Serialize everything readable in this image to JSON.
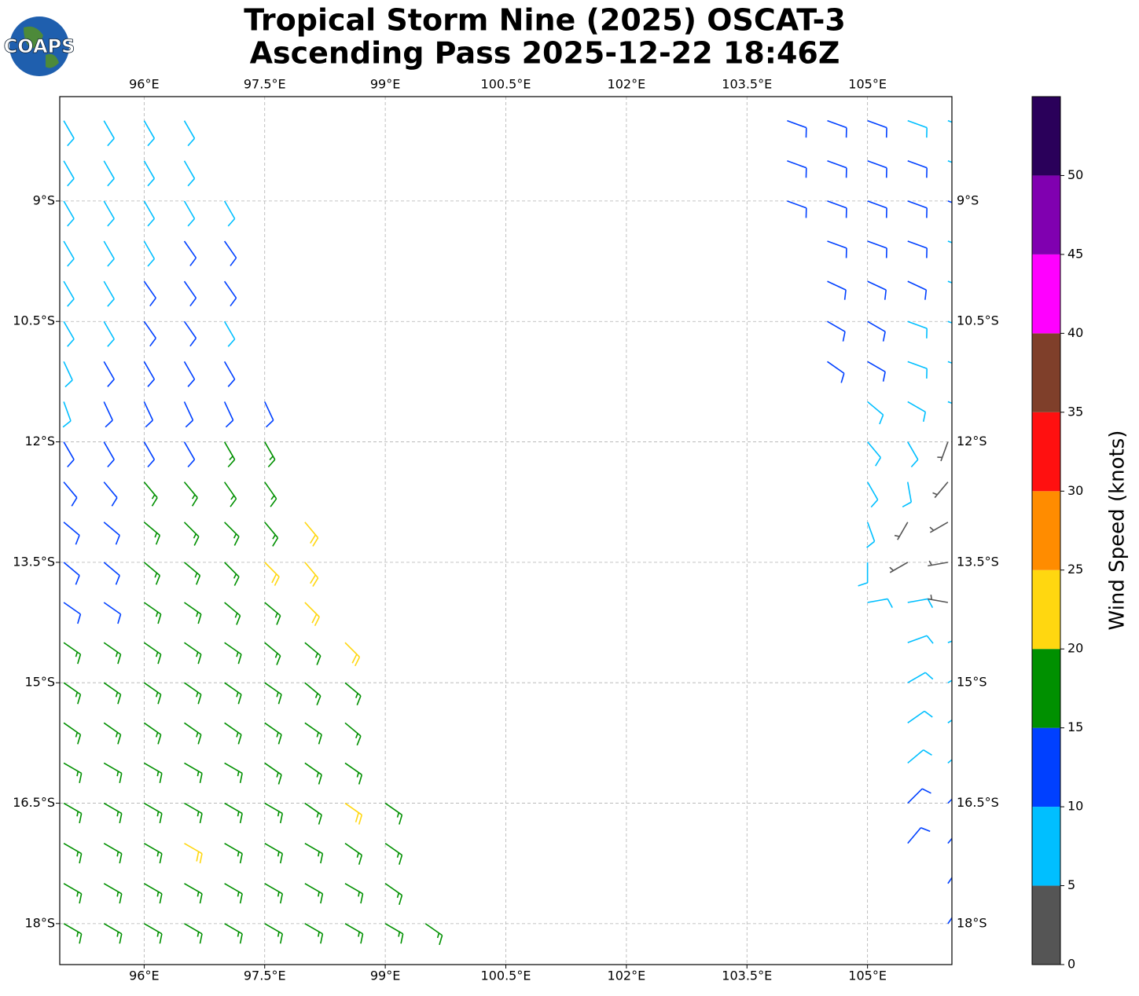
{
  "logo": "COAPS",
  "chart_data": {
    "type": "barbs",
    "title": "Tropical Storm Nine (2025) OSCAT-3",
    "subtitle": "Ascending Pass 2025-12-22 18:46Z",
    "xlim": [
      94.95,
      106.05
    ],
    "ylim": [
      -18.51,
      -7.7
    ],
    "grid": true,
    "xticks": [
      {
        "value": 96,
        "label": "96°E"
      },
      {
        "value": 97.5,
        "label": "97.5°E"
      },
      {
        "value": 99,
        "label": "99°E"
      },
      {
        "value": 100.5,
        "label": "100.5°E"
      },
      {
        "value": 102,
        "label": "102°E"
      },
      {
        "value": 103.5,
        "label": "103.5°E"
      },
      {
        "value": 105,
        "label": "105°E"
      }
    ],
    "yticks": [
      {
        "value": -9,
        "label": "9°S"
      },
      {
        "value": -10.5,
        "label": "10.5°S"
      },
      {
        "value": -12,
        "label": "12°S"
      },
      {
        "value": -13.5,
        "label": "13.5°S"
      },
      {
        "value": -15,
        "label": "15°S"
      },
      {
        "value": -16.5,
        "label": "16.5°S"
      },
      {
        "value": -18,
        "label": "18°S"
      }
    ],
    "colorbar": {
      "label": "Wind Speed (knots)",
      "clim": [
        0,
        55
      ],
      "ticks": [
        0,
        5,
        10,
        15,
        20,
        25,
        30,
        35,
        40,
        45,
        50
      ],
      "colors": [
        "#555555",
        "#00bfff",
        "#0040ff",
        "#009000",
        "#ffd710",
        "#ff8c00",
        "#ff1010",
        "#7f3f2a",
        "#ff00ff",
        "#8000b0",
        "#2a005a"
      ]
    },
    "barbs": [
      [
        95.0,
        -8,
        8,
        150
      ],
      [
        95.5,
        -8,
        8,
        150
      ],
      [
        96.0,
        -8,
        8,
        150
      ],
      [
        96.5,
        -8,
        8,
        150
      ],
      [
        95.0,
        -8.5,
        8,
        150
      ],
      [
        95.5,
        -8.5,
        8,
        150
      ],
      [
        96.0,
        -8.5,
        8,
        150
      ],
      [
        96.5,
        -8.5,
        8,
        150
      ],
      [
        95.0,
        -9,
        8,
        150
      ],
      [
        95.5,
        -9,
        8,
        150
      ],
      [
        96.0,
        -9,
        8,
        150
      ],
      [
        96.5,
        -9,
        8,
        150
      ],
      [
        97.0,
        -9,
        8,
        150
      ],
      [
        95.0,
        -9.5,
        8,
        150
      ],
      [
        95.5,
        -9.5,
        8,
        150
      ],
      [
        96.0,
        -9.5,
        8,
        150
      ],
      [
        96.5,
        -9.5,
        12,
        145
      ],
      [
        97.0,
        -9.5,
        12,
        145
      ],
      [
        95.0,
        -10,
        8,
        150
      ],
      [
        95.5,
        -10,
        8,
        150
      ],
      [
        96.0,
        -10,
        12,
        145
      ],
      [
        96.5,
        -10,
        12,
        145
      ],
      [
        97.0,
        -10,
        12,
        145
      ],
      [
        95.0,
        -10.5,
        8,
        150
      ],
      [
        95.5,
        -10.5,
        8,
        150
      ],
      [
        96.0,
        -10.5,
        12,
        145
      ],
      [
        96.5,
        -10.5,
        12,
        145
      ],
      [
        97.0,
        -10.5,
        8,
        150
      ],
      [
        95.0,
        -11,
        8,
        155
      ],
      [
        95.5,
        -11,
        12,
        150
      ],
      [
        96.0,
        -11,
        12,
        150
      ],
      [
        96.5,
        -11,
        12,
        150
      ],
      [
        97.0,
        -11,
        12,
        150
      ],
      [
        95.0,
        -11.5,
        8,
        160
      ],
      [
        95.5,
        -11.5,
        12,
        155
      ],
      [
        96.0,
        -11.5,
        12,
        155
      ],
      [
        96.5,
        -11.5,
        12,
        155
      ],
      [
        97.0,
        -11.5,
        12,
        155
      ],
      [
        97.5,
        -11.5,
        12,
        155
      ],
      [
        95.0,
        -12,
        12,
        150
      ],
      [
        95.5,
        -12,
        12,
        150
      ],
      [
        96.0,
        -12,
        12,
        150
      ],
      [
        96.5,
        -12,
        12,
        150
      ],
      [
        97.0,
        -12,
        17,
        150
      ],
      [
        97.5,
        -12,
        17,
        150
      ],
      [
        95.0,
        -12.5,
        12,
        140
      ],
      [
        95.5,
        -12.5,
        12,
        140
      ],
      [
        96.0,
        -12.5,
        17,
        140
      ],
      [
        96.5,
        -12.5,
        17,
        140
      ],
      [
        97.0,
        -12.5,
        17,
        145
      ],
      [
        97.5,
        -12.5,
        17,
        145
      ],
      [
        95.0,
        -13,
        12,
        130
      ],
      [
        95.5,
        -13,
        12,
        130
      ],
      [
        96.0,
        -13,
        17,
        130
      ],
      [
        96.5,
        -13,
        17,
        135
      ],
      [
        97.0,
        -13,
        17,
        135
      ],
      [
        97.5,
        -13,
        17,
        140
      ],
      [
        98.0,
        -13,
        22,
        140
      ],
      [
        95.0,
        -13.5,
        12,
        130
      ],
      [
        95.5,
        -13.5,
        12,
        130
      ],
      [
        96.0,
        -13.5,
        17,
        130
      ],
      [
        96.5,
        -13.5,
        17,
        130
      ],
      [
        97.0,
        -13.5,
        17,
        135
      ],
      [
        97.5,
        -13.5,
        22,
        135
      ],
      [
        98.0,
        -13.5,
        22,
        140
      ],
      [
        95.0,
        -14,
        12,
        125
      ],
      [
        95.5,
        -14,
        12,
        125
      ],
      [
        96.0,
        -14,
        17,
        125
      ],
      [
        96.5,
        -14,
        17,
        125
      ],
      [
        97.0,
        -14,
        17,
        130
      ],
      [
        97.5,
        -14,
        17,
        130
      ],
      [
        98.0,
        -14,
        22,
        135
      ],
      [
        95.0,
        -14.5,
        17,
        125
      ],
      [
        95.5,
        -14.5,
        17,
        125
      ],
      [
        96.0,
        -14.5,
        17,
        125
      ],
      [
        96.5,
        -14.5,
        17,
        125
      ],
      [
        97.0,
        -14.5,
        17,
        125
      ],
      [
        97.5,
        -14.5,
        17,
        130
      ],
      [
        98.0,
        -14.5,
        17,
        130
      ],
      [
        98.5,
        -14.5,
        22,
        135
      ],
      [
        95.0,
        -15,
        17,
        125
      ],
      [
        95.5,
        -15,
        17,
        125
      ],
      [
        96.0,
        -15,
        17,
        125
      ],
      [
        96.5,
        -15,
        17,
        125
      ],
      [
        97.0,
        -15,
        17,
        125
      ],
      [
        97.5,
        -15,
        17,
        125
      ],
      [
        98.0,
        -15,
        17,
        130
      ],
      [
        98.5,
        -15,
        17,
        130
      ],
      [
        95.0,
        -15.5,
        17,
        125
      ],
      [
        95.5,
        -15.5,
        17,
        125
      ],
      [
        96.0,
        -15.5,
        17,
        125
      ],
      [
        96.5,
        -15.5,
        17,
        125
      ],
      [
        97.0,
        -15.5,
        17,
        125
      ],
      [
        97.5,
        -15.5,
        17,
        125
      ],
      [
        98.0,
        -15.5,
        17,
        125
      ],
      [
        98.5,
        -15.5,
        17,
        130
      ],
      [
        95.0,
        -16,
        17,
        120
      ],
      [
        95.5,
        -16,
        17,
        120
      ],
      [
        96.0,
        -16,
        17,
        120
      ],
      [
        96.5,
        -16,
        17,
        120
      ],
      [
        97.0,
        -16,
        17,
        120
      ],
      [
        97.5,
        -16,
        17,
        125
      ],
      [
        98.0,
        -16,
        17,
        125
      ],
      [
        98.5,
        -16,
        17,
        125
      ],
      [
        95.0,
        -16.5,
        17,
        120
      ],
      [
        95.5,
        -16.5,
        17,
        120
      ],
      [
        96.0,
        -16.5,
        17,
        120
      ],
      [
        96.5,
        -16.5,
        17,
        120
      ],
      [
        97.0,
        -16.5,
        17,
        120
      ],
      [
        97.5,
        -16.5,
        17,
        120
      ],
      [
        98.0,
        -16.5,
        17,
        125
      ],
      [
        98.5,
        -16.5,
        22,
        125
      ],
      [
        99.0,
        -16.5,
        17,
        125
      ],
      [
        95.0,
        -17,
        17,
        120
      ],
      [
        95.5,
        -17,
        17,
        120
      ],
      [
        96.0,
        -17,
        17,
        120
      ],
      [
        96.5,
        -17,
        22,
        120
      ],
      [
        97.0,
        -17,
        17,
        120
      ],
      [
        97.5,
        -17,
        17,
        120
      ],
      [
        98.0,
        -17,
        17,
        120
      ],
      [
        98.5,
        -17,
        17,
        125
      ],
      [
        99.0,
        -17,
        17,
        125
      ],
      [
        95.0,
        -17.5,
        17,
        120
      ],
      [
        95.5,
        -17.5,
        17,
        120
      ],
      [
        96.0,
        -17.5,
        17,
        120
      ],
      [
        96.5,
        -17.5,
        17,
        120
      ],
      [
        97.0,
        -17.5,
        17,
        120
      ],
      [
        97.5,
        -17.5,
        17,
        120
      ],
      [
        98.0,
        -17.5,
        17,
        120
      ],
      [
        98.5,
        -17.5,
        17,
        120
      ],
      [
        99.0,
        -17.5,
        17,
        125
      ],
      [
        95.0,
        -18,
        17,
        120
      ],
      [
        95.5,
        -18,
        17,
        120
      ],
      [
        96.0,
        -18,
        17,
        120
      ],
      [
        96.5,
        -18,
        17,
        120
      ],
      [
        97.0,
        -18,
        17,
        120
      ],
      [
        97.5,
        -18,
        17,
        120
      ],
      [
        98.0,
        -18,
        17,
        120
      ],
      [
        98.5,
        -18,
        17,
        120
      ],
      [
        99.0,
        -18,
        17,
        120
      ],
      [
        99.5,
        -18,
        17,
        125
      ],
      [
        104.0,
        -8,
        12,
        110
      ],
      [
        104.5,
        -8,
        12,
        110
      ],
      [
        105.0,
        -8,
        12,
        110
      ],
      [
        105.5,
        -8,
        8,
        110
      ],
      [
        106.0,
        -8,
        8,
        110
      ],
      [
        104.0,
        -8.5,
        12,
        110
      ],
      [
        104.5,
        -8.5,
        12,
        110
      ],
      [
        105.0,
        -8.5,
        12,
        110
      ],
      [
        105.5,
        -8.5,
        12,
        110
      ],
      [
        106.0,
        -8.5,
        8,
        110
      ],
      [
        104.0,
        -9,
        12,
        110
      ],
      [
        104.5,
        -9,
        12,
        110
      ],
      [
        105.0,
        -9,
        12,
        110
      ],
      [
        105.5,
        -9,
        12,
        110
      ],
      [
        106.0,
        -9,
        12,
        110
      ],
      [
        104.5,
        -9.5,
        12,
        110
      ],
      [
        105.0,
        -9.5,
        12,
        110
      ],
      [
        105.5,
        -9.5,
        12,
        110
      ],
      [
        106.0,
        -9.5,
        8,
        110
      ],
      [
        104.5,
        -10,
        12,
        115
      ],
      [
        105.0,
        -10,
        12,
        115
      ],
      [
        105.5,
        -10,
        12,
        115
      ],
      [
        106.0,
        -10,
        8,
        110
      ],
      [
        104.5,
        -10.5,
        12,
        120
      ],
      [
        105.0,
        -10.5,
        12,
        120
      ],
      [
        105.5,
        -10.5,
        8,
        110
      ],
      [
        106.0,
        -10.5,
        8,
        110
      ],
      [
        104.5,
        -11,
        12,
        125
      ],
      [
        105.0,
        -11,
        12,
        120
      ],
      [
        105.5,
        -11,
        8,
        110
      ],
      [
        106.0,
        -11,
        8,
        110
      ],
      [
        105.0,
        -11.5,
        8,
        130
      ],
      [
        105.5,
        -11.5,
        8,
        120
      ],
      [
        106.0,
        -11.5,
        8,
        110
      ],
      [
        105.0,
        -12,
        8,
        140
      ],
      [
        105.5,
        -12,
        8,
        150
      ],
      [
        106.0,
        -12,
        3,
        200
      ],
      [
        105.0,
        -12.5,
        8,
        150
      ],
      [
        105.5,
        -12.5,
        8,
        170
      ],
      [
        106.0,
        -12.5,
        3,
        220
      ],
      [
        105.0,
        -13,
        8,
        160
      ],
      [
        105.5,
        -13,
        3,
        210
      ],
      [
        106.0,
        -13,
        3,
        240
      ],
      [
        105.0,
        -13.5,
        8,
        180
      ],
      [
        105.5,
        -13.5,
        3,
        240
      ],
      [
        106.0,
        -13.5,
        3,
        260
      ],
      [
        105.0,
        -14,
        8,
        80
      ],
      [
        105.5,
        -14,
        8,
        80
      ],
      [
        106.0,
        -14,
        3,
        280
      ],
      [
        105.5,
        -14.5,
        8,
        70
      ],
      [
        106.0,
        -14.5,
        8,
        70
      ],
      [
        105.5,
        -15,
        8,
        60
      ],
      [
        106.0,
        -15,
        8,
        60
      ],
      [
        105.5,
        -15.5,
        8,
        55
      ],
      [
        106.0,
        -15.5,
        8,
        55
      ],
      [
        105.5,
        -16,
        8,
        50
      ],
      [
        106.0,
        -16,
        8,
        50
      ],
      [
        105.5,
        -16.5,
        12,
        45
      ],
      [
        106.0,
        -16.5,
        12,
        45
      ],
      [
        105.5,
        -17,
        12,
        40
      ],
      [
        106.0,
        -17,
        12,
        40
      ],
      [
        106.0,
        -17.5,
        12,
        35
      ],
      [
        106.0,
        -18,
        12,
        35
      ]
    ]
  }
}
